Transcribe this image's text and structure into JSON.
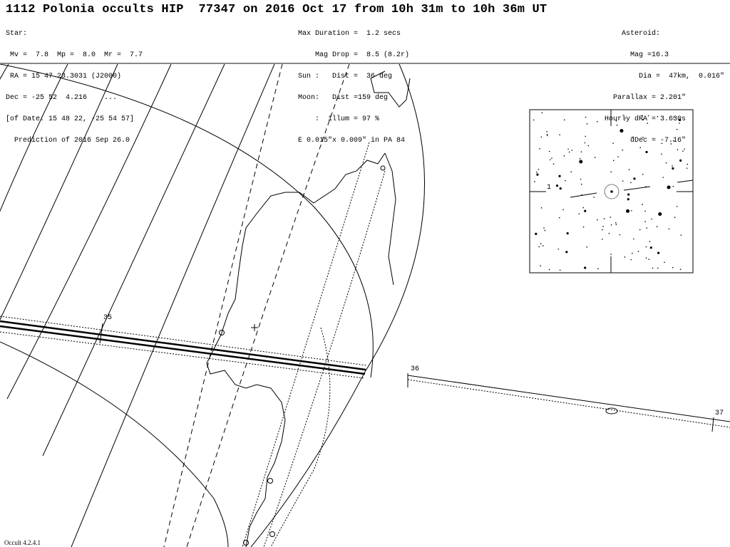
{
  "header": {
    "title": "1112 Polonia occults HIP  77347 on 2016 Oct 17 from 10h 31m to 10h 36m UT",
    "star": {
      "heading": "Star:",
      "mags": " Mv =  7.8  Mp =  8.0  Mr =  7.7",
      "ra": " RA = 15 47 23.3031 (J2000)",
      "dec": "Dec = -25 52  4.216    ...",
      "of_date": "[of Date: 15 48 22, -25 54 57]",
      "prediction": "  Prediction of 2016 Sep 26.0"
    },
    "event": {
      "max_duration": "Max Duration =  1.2 secs",
      "mag_drop": "    Mag Drop =  8.5 (8.2r)",
      "sun": "Sun :   Dist =  36 deg",
      "moon": "Moon:   Dist =159 deg",
      "illum": "    :  illum = 97 %",
      "ellipse": "E 0.015\"x 0.009\" in PA 84"
    },
    "asteroid": {
      "heading": "Asteroid:",
      "mag": "Mag =16.3",
      "dia": "Dia =  47km,  0.016\"",
      "parallax": "Parallax = 2.201\"",
      "hourly_dra": "Hourly dRA = 3.630s",
      "ddec": "dDec = -7.16\""
    }
  },
  "map": {
    "time_labels": [
      "35",
      "36",
      "37"
    ],
    "star_chart_label": "1"
  },
  "footer": {
    "software": "Occult 4.2.4.1"
  },
  "colors": {
    "ink": "#000000",
    "border": "#888888"
  }
}
